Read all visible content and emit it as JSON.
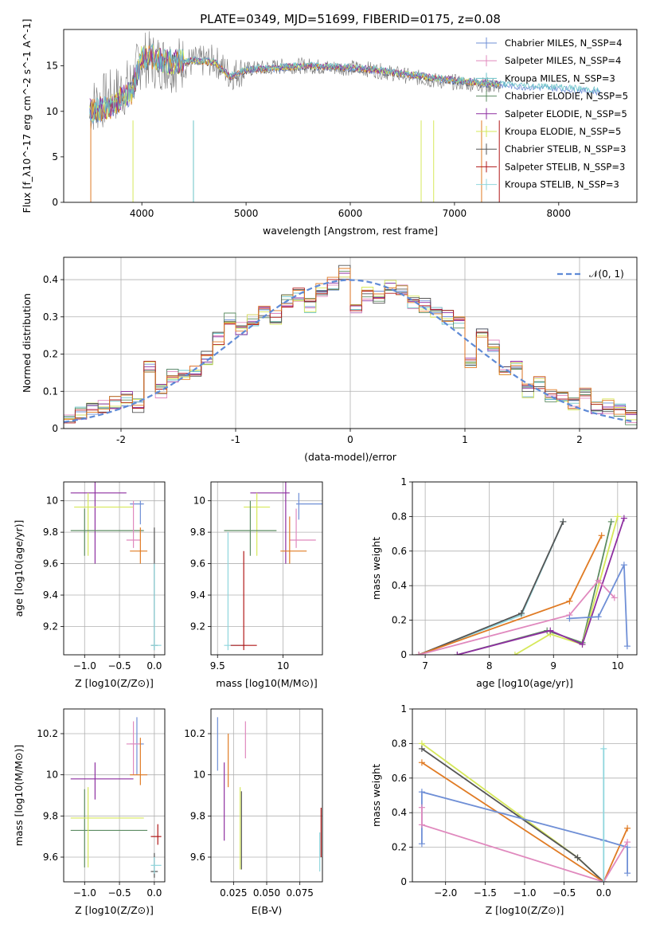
{
  "figure_title": "PLATE=0349, MJD=51699, FIBERID=0175, z=0.08",
  "colors": {
    "chabrier_miles": "#6f8fd6",
    "salpeter_miles": "#e089be",
    "kroupa_miles": "#69c3c8",
    "chabrier_elodie": "#5d8c62",
    "salpeter_elodie": "#8e2fa0",
    "kroupa_elodie": "#d6e85a",
    "chabrier_stelib": "#555555",
    "salpeter_stelib": "#b01818",
    "kroupa_stelib": "#8fd6dd",
    "orange": "#e07b24"
  },
  "chart_data": [
    {
      "id": "spectrum",
      "type": "line",
      "xlabel": "wavelength [Angstrom, rest frame]",
      "ylabel": "Flux [f_λ10^-17 erg cm^-2 s^-1 A^-1]",
      "xlim": [
        3250,
        8750
      ],
      "ylim": [
        0,
        19
      ],
      "xticks": [
        4000,
        5000,
        6000,
        7000,
        8000
      ],
      "yticks": [
        0,
        5,
        10,
        15
      ],
      "legend_position": "top-right",
      "legend": [
        "Chabrier MILES, N_SSP=4",
        "Salpeter MILES, N_SSP=4",
        "Kroupa MILES, N_SSP=3",
        "Chabrier ELODIE, N_SSP=5",
        "Salpeter ELODIE, N_SSP=5",
        "Kroupa ELODIE, N_SSP=5",
        "Chabrier STELIB, N_SSP=3",
        "Salpeter STELIB, N_SSP=3",
        "Kroupa STELIB, N_SSP=3"
      ],
      "data_envelope": {
        "x": [
          3500,
          3700,
          3900,
          4000,
          4100,
          4300,
          4500,
          4700,
          4850,
          5000,
          5200,
          5400,
          5600,
          5800,
          6000,
          6200,
          6400,
          6600,
          6800,
          7000,
          7200,
          7400
        ],
        "y": [
          10.5,
          11.5,
          13.0,
          15.8,
          15.6,
          15.2,
          15.4,
          15.6,
          14.0,
          14.6,
          14.8,
          15.0,
          15.0,
          14.8,
          14.8,
          14.6,
          14.2,
          13.8,
          13.4,
          13.2,
          13.0,
          12.8
        ]
      },
      "model_curve": {
        "x": [
          3500,
          3700,
          3900,
          4000,
          4100,
          4300,
          4500,
          4700,
          4850,
          5000,
          5200,
          5400,
          5600,
          5800,
          6000,
          6200,
          6400,
          6600,
          6800,
          7000,
          7200,
          7400,
          7600,
          7800,
          8000,
          8200,
          8400
        ],
        "y": [
          10.0,
          10.6,
          12.2,
          16.0,
          15.9,
          15.3,
          15.6,
          15.4,
          13.8,
          14.6,
          14.7,
          14.9,
          15.0,
          14.9,
          14.8,
          14.6,
          14.3,
          14.0,
          13.7,
          13.4,
          13.2,
          13.0,
          12.8,
          12.7,
          12.6,
          12.4,
          12.2
        ]
      }
    },
    {
      "id": "residuals",
      "type": "line",
      "xlabel": "(data-model)/error",
      "ylabel": "Normed distribution",
      "xlim": [
        -2.5,
        2.5
      ],
      "ylim": [
        0,
        0.46
      ],
      "xticks": [
        -2,
        -1,
        0,
        1,
        2
      ],
      "yticks": [
        0.0,
        0.1,
        0.2,
        0.3,
        0.4
      ],
      "legend_position": "top-right",
      "legend": [
        "𝒩(0, 1)"
      ],
      "histogram": {
        "bin_edges": [
          -2.5,
          -2.4,
          -2.3,
          -2.2,
          -2.1,
          -2.0,
          -1.9,
          -1.8,
          -1.7,
          -1.6,
          -1.5,
          -1.4,
          -1.3,
          -1.2,
          -1.1,
          -1.0,
          -0.9,
          -0.8,
          -0.7,
          -0.6,
          -0.5,
          -0.4,
          -0.3,
          -0.2,
          -0.1,
          0.0,
          0.1,
          0.2,
          0.3,
          0.4,
          0.5,
          0.6,
          0.7,
          0.8,
          0.9,
          1.0,
          1.1,
          1.2,
          1.3,
          1.4,
          1.5,
          1.6,
          1.7,
          1.8,
          1.9,
          2.0,
          2.1,
          2.2,
          2.3,
          2.4,
          2.5
        ],
        "values": [
          0.03,
          0.04,
          0.05,
          0.06,
          0.07,
          0.08,
          0.06,
          0.17,
          0.1,
          0.14,
          0.15,
          0.16,
          0.19,
          0.24,
          0.3,
          0.27,
          0.29,
          0.31,
          0.3,
          0.34,
          0.36,
          0.33,
          0.37,
          0.39,
          0.42,
          0.33,
          0.36,
          0.35,
          0.38,
          0.37,
          0.34,
          0.33,
          0.31,
          0.3,
          0.28,
          0.18,
          0.25,
          0.22,
          0.16,
          0.17,
          0.1,
          0.12,
          0.09,
          0.08,
          0.07,
          0.09,
          0.06,
          0.06,
          0.05,
          0.03
        ]
      },
      "normal_curve": {
        "mean": 0,
        "sigma": 1
      }
    },
    {
      "id": "age-vs-Z",
      "type": "scatter",
      "xlabel": "Z [log10(Z/Z⊙)]",
      "ylabel": "age [log10(age/yr)]",
      "xlim": [
        -1.3,
        0.15
      ],
      "ylim": [
        9.02,
        10.12
      ],
      "xticks": [
        -1.0,
        -0.5,
        0.0
      ],
      "xticklabels": [
        "−1.0",
        "−0.5",
        "0.0"
      ],
      "yticks": [
        9.2,
        9.4,
        9.6,
        9.8,
        10.0
      ],
      "errorbars": [
        {
          "color": "salpeter_elodie",
          "x": [
            -1.2,
            -0.4
          ],
          "y": 10.05,
          "xc": -0.85,
          "yr": [
            9.6,
            10.12
          ]
        },
        {
          "color": "kroupa_elodie",
          "x": [
            -1.15,
            -0.3
          ],
          "y": 9.96,
          "xc": -0.95,
          "yr": [
            9.65,
            10.05
          ]
        },
        {
          "color": "chabrier_elodie",
          "x": [
            -1.2,
            -0.15
          ],
          "y": 9.81,
          "xc": -1.0,
          "yr": [
            9.65,
            9.95
          ]
        },
        {
          "color": "chabrier_miles",
          "x": [
            -0.35,
            -0.15
          ],
          "y": 9.98,
          "xc": -0.2,
          "yr": [
            9.85,
            10.0
          ]
        },
        {
          "color": "salpeter_miles",
          "x": [
            -0.4,
            -0.2
          ],
          "y": 9.75,
          "xc": -0.3,
          "yr": [
            9.7,
            10.0
          ]
        },
        {
          "color": "orange",
          "x": [
            -0.35,
            -0.1
          ],
          "y": 9.68,
          "xc": -0.2,
          "yr": [
            9.6,
            9.83
          ]
        },
        {
          "color": "chabrier_stelib",
          "x": [
            -0.05,
            0.05
          ],
          "y": 9.08,
          "xc": 0.0,
          "yr": [
            9.05,
            9.83
          ]
        },
        {
          "color": "kroupa_stelib",
          "x": [
            -0.05,
            0.1
          ],
          "y": 9.08,
          "xc": 0.0,
          "yr": [
            9.05,
            9.6
          ]
        }
      ]
    },
    {
      "id": "age-vs-mass",
      "type": "scatter",
      "xlabel": "mass [log10(M/M⊙)]",
      "ylabel": "",
      "xlim": [
        9.45,
        10.3
      ],
      "ylim": [
        9.02,
        10.12
      ],
      "xticks": [
        9.5,
        10.0
      ],
      "yticks": [
        9.2,
        9.4,
        9.6,
        9.8,
        10.0
      ],
      "errorbars": [
        {
          "color": "salpeter_elodie",
          "x": [
            9.75,
            10.05
          ],
          "y": 10.05,
          "xc": 10.02,
          "yr": [
            9.6,
            10.12
          ]
        },
        {
          "color": "chabrier_miles",
          "x": [
            10.1,
            10.3
          ],
          "y": 9.98,
          "xc": 10.12,
          "yr": [
            9.88,
            10.05
          ]
        },
        {
          "color": "kroupa_elodie",
          "x": [
            9.7,
            9.9
          ],
          "y": 9.96,
          "xc": 9.8,
          "yr": [
            9.65,
            10.05
          ]
        },
        {
          "color": "chabrier_elodie",
          "x": [
            9.55,
            9.95
          ],
          "y": 9.81,
          "xc": 9.75,
          "yr": [
            9.65,
            10.0
          ]
        },
        {
          "color": "salpeter_miles",
          "x": [
            10.05,
            10.25
          ],
          "y": 9.75,
          "xc": 10.1,
          "yr": [
            9.7,
            9.95
          ]
        },
        {
          "color": "orange",
          "x": [
            9.98,
            10.18
          ],
          "y": 9.68,
          "xc": 10.05,
          "yr": [
            9.6,
            9.9
          ]
        },
        {
          "color": "kroupa_stelib",
          "x": [
            9.55,
            9.72
          ],
          "y": 9.08,
          "xc": 9.58,
          "yr": [
            9.05,
            9.8
          ]
        },
        {
          "color": "salpeter_stelib",
          "x": [
            9.6,
            9.8
          ],
          "y": 9.08,
          "xc": 9.7,
          "yr": [
            9.05,
            9.68
          ]
        }
      ]
    },
    {
      "id": "weight-vs-age",
      "type": "line",
      "xlabel": "age [log10(age/yr)]",
      "ylabel": "mass weight",
      "xlim": [
        6.8,
        10.3
      ],
      "ylim": [
        0,
        1
      ],
      "xticks": [
        7,
        8,
        9,
        10
      ],
      "yticks": [
        0.0,
        0.2,
        0.4,
        0.6,
        0.8,
        1.0
      ],
      "series": [
        {
          "color": "kroupa_stelib",
          "x": [
            6.9,
            8.5,
            9.15
          ],
          "y": [
            0.0,
            0.23,
            0.77
          ]
        },
        {
          "color": "chabrier_stelib",
          "x": [
            6.9,
            8.5,
            9.15
          ],
          "y": [
            0.0,
            0.24,
            0.77
          ]
        },
        {
          "color": "orange",
          "x": [
            6.9,
            9.25,
            9.75
          ],
          "y": [
            0.0,
            0.31,
            0.69
          ]
        },
        {
          "color": "chabrier_elodie",
          "x": [
            7.5,
            8.9,
            9.45,
            9.9
          ],
          "y": [
            0.0,
            0.14,
            0.07,
            0.77
          ]
        },
        {
          "color": "kroupa_elodie",
          "x": [
            8.4,
            8.95,
            9.45,
            10.0
          ],
          "y": [
            0.0,
            0.12,
            0.06,
            0.8
          ]
        },
        {
          "color": "salpeter_elodie",
          "x": [
            7.5,
            8.95,
            9.45,
            10.1
          ],
          "y": [
            0.0,
            0.14,
            0.06,
            0.79
          ]
        },
        {
          "color": "salpeter_miles",
          "x": [
            6.9,
            9.25,
            9.7,
            9.95
          ],
          "y": [
            0.0,
            0.23,
            0.43,
            0.33
          ]
        },
        {
          "color": "chabrier_miles",
          "x": [
            9.25,
            9.7,
            10.1,
            10.15
          ],
          "y": [
            0.21,
            0.22,
            0.52,
            0.05
          ]
        }
      ]
    },
    {
      "id": "mass-vs-Z",
      "type": "scatter",
      "xlabel": "Z [log10(Z/Z⊙)]",
      "ylabel": "mass [log10(M/M⊙)]",
      "xlim": [
        -1.3,
        0.15
      ],
      "ylim": [
        9.48,
        10.32
      ],
      "xticks": [
        -1.0,
        -0.5,
        0.0
      ],
      "xticklabels": [
        "−1.0",
        "−0.5",
        "0.0"
      ],
      "yticks": [
        9.6,
        9.8,
        10.0,
        10.2
      ],
      "errorbars": [
        {
          "color": "salpeter_elodie",
          "x": [
            -1.2,
            -0.3
          ],
          "y": 9.98,
          "xc": -0.85,
          "yr": [
            9.88,
            10.06
          ]
        },
        {
          "color": "chabrier_elodie",
          "x": [
            -1.2,
            -0.1
          ],
          "y": 9.73,
          "xc": -1.0,
          "yr": [
            9.55,
            9.93
          ]
        },
        {
          "color": "kroupa_elodie",
          "x": [
            -1.2,
            -0.15
          ],
          "y": 9.79,
          "xc": -0.95,
          "yr": [
            9.55,
            9.94
          ]
        },
        {
          "color": "chabrier_miles",
          "x": [
            -0.35,
            -0.15
          ],
          "y": 10.15,
          "xc": -0.25,
          "yr": [
            10.0,
            10.28
          ]
        },
        {
          "color": "salpeter_miles",
          "x": [
            -0.4,
            -0.2
          ],
          "y": 10.15,
          "xc": -0.3,
          "yr": [
            10.0,
            10.26
          ]
        },
        {
          "color": "orange",
          "x": [
            -0.35,
            -0.1
          ],
          "y": 10.0,
          "xc": -0.2,
          "yr": [
            9.95,
            10.18
          ]
        },
        {
          "color": "salpeter_stelib",
          "x": [
            -0.05,
            0.1
          ],
          "y": 9.7,
          "xc": 0.05,
          "yr": [
            9.66,
            9.76
          ]
        },
        {
          "color": "chabrier_stelib",
          "x": [
            -0.05,
            0.05
          ],
          "y": 9.53,
          "xc": 0.0,
          "yr": [
            9.5,
            9.62
          ]
        },
        {
          "color": "kroupa_stelib",
          "x": [
            -0.05,
            0.1
          ],
          "y": 9.56,
          "xc": 0.0,
          "yr": [
            9.52,
            9.6
          ]
        }
      ]
    },
    {
      "id": "mass-vs-ebv",
      "type": "scatter",
      "xlabel": "E(B-V)",
      "ylabel": "",
      "xlim": [
        0.008,
        0.092
      ],
      "ylim": [
        9.48,
        10.32
      ],
      "xticks": [
        0.025,
        0.05,
        0.075
      ],
      "xticklabels": [
        "0.025",
        "0.050",
        "0.075"
      ],
      "yticks": [
        9.6,
        9.8,
        10.0,
        10.2
      ],
      "vbars": [
        {
          "color": "chabrier_miles",
          "x": 0.013,
          "yr": [
            10.02,
            10.28
          ]
        },
        {
          "color": "salpeter_elodie",
          "x": 0.018,
          "yr": [
            9.68,
            10.06
          ]
        },
        {
          "color": "orange",
          "x": 0.021,
          "yr": [
            9.94,
            10.2
          ]
        },
        {
          "color": "salpeter_miles",
          "x": 0.034,
          "yr": [
            10.08,
            10.26
          ]
        },
        {
          "color": "kroupa_elodie",
          "x": 0.03,
          "yr": [
            9.54,
            9.94
          ]
        },
        {
          "color": "chabrier_stelib",
          "x": 0.031,
          "yr": [
            9.54,
            9.92
          ]
        },
        {
          "color": "salpeter_stelib",
          "x": 0.091,
          "yr": [
            9.6,
            9.84
          ]
        },
        {
          "color": "kroupa_stelib",
          "x": 0.09,
          "yr": [
            9.53,
            9.72
          ]
        }
      ]
    },
    {
      "id": "weight-vs-Z",
      "type": "line",
      "xlabel": "Z [log10(Z/Z⊙)]",
      "ylabel": "mass weight",
      "xlim": [
        -2.42,
        0.42
      ],
      "ylim": [
        0,
        1
      ],
      "xticks": [
        -2.0,
        -1.5,
        -1.0,
        -0.5,
        0.0
      ],
      "xticklabels": [
        "−2.0",
        "−1.5",
        "−1.0",
        "−0.5",
        "0.0"
      ],
      "yticks": [
        0.0,
        0.2,
        0.4,
        0.6,
        0.8,
        1.0
      ],
      "series": [
        {
          "color": "kroupa_elodie",
          "x": [
            -2.3,
            -0.33,
            0.0
          ],
          "y": [
            0.8,
            0.14,
            0.0
          ]
        },
        {
          "color": "chabrier_stelib",
          "x": [
            -2.3,
            -0.33,
            0.0
          ],
          "y": [
            0.77,
            0.14,
            0.0
          ]
        },
        {
          "color": "orange",
          "x": [
            -2.3,
            0.0,
            0.3
          ],
          "y": [
            0.69,
            0.0,
            0.31
          ]
        },
        {
          "color": "chabrier_miles",
          "x": [
            -2.3,
            -2.3,
            0.0,
            0.3,
            0.3
          ],
          "y": [
            0.22,
            0.52,
            0.24,
            0.2,
            0.05
          ]
        },
        {
          "color": "salpeter_miles",
          "x": [
            -2.3,
            -2.3,
            0.0,
            0.3
          ],
          "y": [
            0.43,
            0.33,
            0.0,
            0.23
          ]
        },
        {
          "color": "kroupa_stelib",
          "x": [
            0.0,
            0.0
          ],
          "y": [
            0.0,
            0.77
          ]
        }
      ]
    }
  ]
}
